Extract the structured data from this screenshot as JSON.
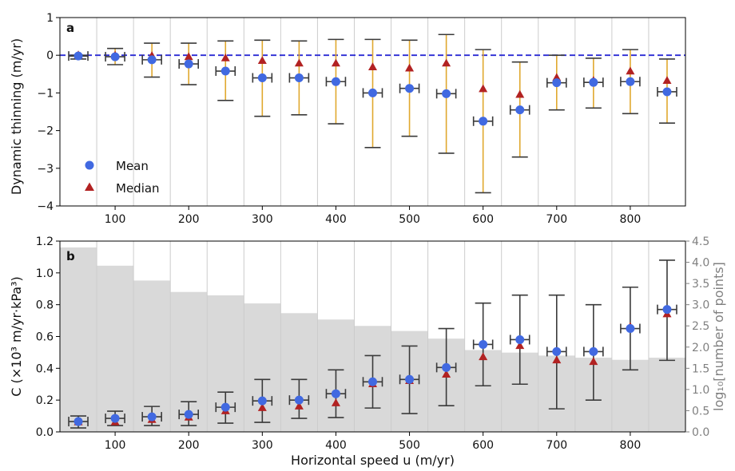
{
  "chart_data": [
    {
      "panel": "a",
      "type": "scatter",
      "ylabel": "Dynamic thinning (m/yr)",
      "xlabel": "",
      "xlim": [
        25,
        875
      ],
      "ylim": [
        -4,
        1
      ],
      "yticks": [
        1,
        0,
        -1,
        -2,
        -3,
        -4
      ],
      "xticks": [
        100,
        200,
        300,
        400,
        500,
        600,
        700,
        800
      ],
      "grid": "vertical",
      "legend": "lower-left",
      "legend_entries": [
        "Mean",
        "Median"
      ],
      "x": [
        50,
        100,
        150,
        200,
        250,
        300,
        350,
        400,
        450,
        500,
        550,
        600,
        650,
        700,
        750,
        800,
        850
      ],
      "mean": [
        -0.02,
        -0.04,
        -0.12,
        -0.23,
        -0.42,
        -0.6,
        -0.6,
        -0.7,
        -1.0,
        -0.88,
        -1.02,
        -1.75,
        -1.45,
        -0.73,
        -0.72,
        -0.7,
        -0.97
      ],
      "median": [
        0.0,
        -0.01,
        -0.02,
        -0.05,
        -0.08,
        -0.15,
        -0.22,
        -0.22,
        -0.32,
        -0.35,
        -0.22,
        -0.9,
        -1.05,
        -0.6,
        -0.68,
        -0.43,
        -0.68
      ],
      "err_low": [
        -0.1,
        -0.25,
        -0.58,
        -0.78,
        -1.2,
        -1.62,
        -1.58,
        -1.82,
        -2.45,
        -2.15,
        -2.6,
        -3.65,
        -2.7,
        -1.45,
        -1.4,
        -1.55,
        -1.8
      ],
      "err_high": [
        0.0,
        0.18,
        0.32,
        0.32,
        0.38,
        0.4,
        0.38,
        0.42,
        0.42,
        0.4,
        0.55,
        0.15,
        -0.18,
        0.0,
        -0.08,
        0.15,
        -0.1
      ],
      "zero_line": 0,
      "colors": {
        "mean": "#4169e1",
        "median": "#b22222",
        "errorbar": "#e0a82e",
        "zero_line": "#2a2ad4",
        "grid": "#cccccc"
      }
    },
    {
      "panel": "b",
      "type": "scatter",
      "ylabel": "C (×10³ m/yr·kPa³)",
      "y2label": "log₁₀[number of points]",
      "xlabel": "Horizontal speed u (m/yr)",
      "xlim": [
        25,
        875
      ],
      "ylim": [
        0,
        1.2
      ],
      "y2lim": [
        0,
        4.5
      ],
      "yticks": [
        0.0,
        0.2,
        0.4,
        0.6,
        0.8,
        1.0,
        1.2
      ],
      "y2ticks": [
        0.0,
        0.5,
        1.0,
        1.5,
        2.0,
        2.5,
        3.0,
        3.5,
        4.0,
        4.5
      ],
      "xticks": [
        100,
        200,
        300,
        400,
        500,
        600,
        700,
        800
      ],
      "grid": "vertical",
      "x": [
        50,
        100,
        150,
        200,
        250,
        300,
        350,
        400,
        450,
        500,
        550,
        600,
        650,
        700,
        750,
        800,
        850
      ],
      "mean": [
        0.065,
        0.085,
        0.095,
        0.11,
        0.155,
        0.195,
        0.2,
        0.24,
        0.315,
        0.33,
        0.405,
        0.55,
        0.58,
        0.505,
        0.505,
        0.65,
        0.77
      ],
      "median": [
        0.06,
        0.06,
        0.075,
        0.09,
        0.13,
        0.15,
        0.16,
        0.18,
        0.3,
        0.32,
        0.36,
        0.47,
        0.54,
        0.45,
        0.44,
        0.66,
        0.74
      ],
      "err_low": [
        0.025,
        0.04,
        0.04,
        0.04,
        0.055,
        0.06,
        0.085,
        0.09,
        0.15,
        0.115,
        0.165,
        0.29,
        0.3,
        0.145,
        0.2,
        0.39,
        0.45
      ],
      "err_high": [
        0.1,
        0.13,
        0.16,
        0.19,
        0.25,
        0.33,
        0.33,
        0.39,
        0.48,
        0.54,
        0.65,
        0.81,
        0.86,
        0.86,
        0.8,
        0.91,
        1.08
      ],
      "histogram": {
        "bin_edges": [
          25,
          75,
          125,
          175,
          225,
          275,
          325,
          375,
          425,
          475,
          525,
          575,
          625,
          675,
          725,
          775,
          825,
          875
        ],
        "log10_counts": [
          4.35,
          3.92,
          3.57,
          3.3,
          3.22,
          3.03,
          2.8,
          2.65,
          2.5,
          2.38,
          2.2,
          1.93,
          1.87,
          1.8,
          1.75,
          1.7,
          1.75
        ]
      },
      "colors": {
        "mean": "#4169e1",
        "median": "#b22222",
        "errorbar": "#3a3a3a",
        "histogram": "#d9d9d9",
        "grid": "#cccccc",
        "right_axis": "#808080"
      }
    }
  ],
  "panel_labels": {
    "a": "a",
    "b": "b"
  },
  "legend": {
    "mean_label": "Mean",
    "median_label": "Median"
  }
}
